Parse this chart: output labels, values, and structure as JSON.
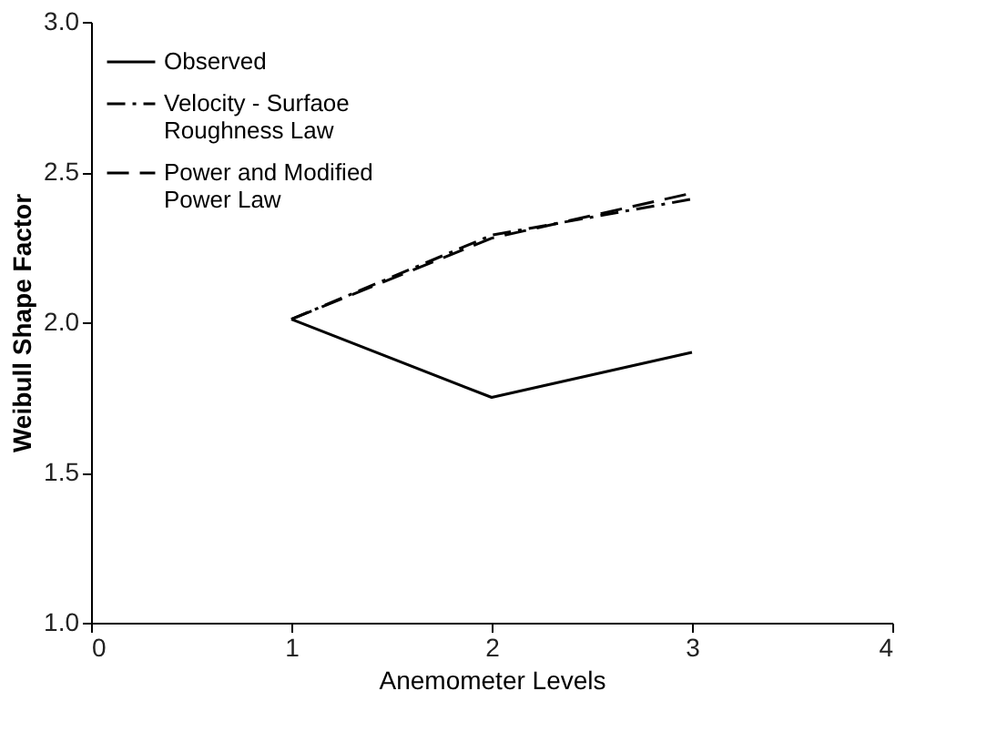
{
  "chart_data": {
    "type": "line",
    "xlabel": "Anemometer Levels",
    "ylabel": "Weibull Shape Factor",
    "x": [
      1,
      2,
      3
    ],
    "series": [
      {
        "name": "Observed",
        "color": "#000000",
        "line_style": "solid",
        "values": [
          2.01,
          1.75,
          1.9
        ]
      },
      {
        "name": "Velocity - Surfaoe\nRoughness Law",
        "color": "#000000",
        "line_style": "dashdot",
        "values": [
          2.01,
          2.29,
          2.41
        ]
      },
      {
        "name": "Power and Modified\nPower Law",
        "color": "#000000",
        "line_style": "dashed",
        "values": [
          2.01,
          2.28,
          2.43
        ]
      }
    ],
    "xlim": [
      0,
      4
    ],
    "xticks": [
      0,
      1,
      2,
      3,
      4
    ],
    "ylim": [
      1.0,
      3.0
    ],
    "yticks": [
      {
        "value": 1,
        "label": "1.0"
      },
      1.5,
      {
        "value": 2,
        "label": "2.0"
      },
      2.5,
      {
        "value": 3,
        "label": "3.0"
      }
    ],
    "grid": false,
    "legend": "top left",
    "marker": "none"
  }
}
